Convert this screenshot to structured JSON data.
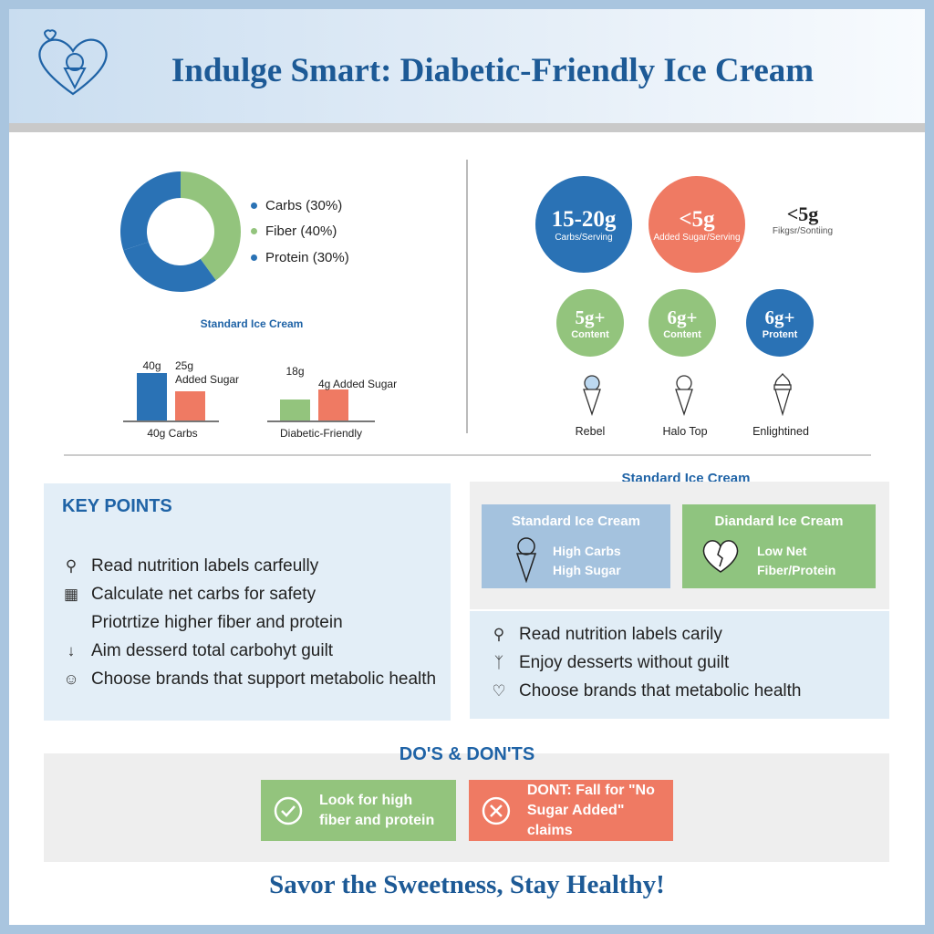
{
  "header": {
    "title": "Indulge Smart: Diabetic-Friendly Ice Cream",
    "logo_icon": "heart-ice-cream-icon"
  },
  "colors": {
    "blue": "#2a72b5",
    "green": "#93c47d",
    "red": "#ef7a63",
    "title": "#1d5a96"
  },
  "chart_data": [
    {
      "type": "pie",
      "donut": true,
      "slices": [
        {
          "label": "Carbs (30%)",
          "value": 30,
          "color": "#2a72b5"
        },
        {
          "label": "Fiber (40%)",
          "value": 40,
          "color": "#93c47d"
        },
        {
          "label": "Protein (30%)",
          "value": 30,
          "color": "#2a72b5"
        }
      ],
      "legend": "right"
    },
    {
      "type": "bar",
      "title": "Standard Ice Cream",
      "groups": [
        {
          "label": "40g Carbs",
          "bars": [
            {
              "label": "40g",
              "value": 40,
              "color": "#2a72b5"
            },
            {
              "label": "25g Added Sugar",
              "value": 25,
              "color": "#ef7a63"
            }
          ]
        },
        {
          "label": "Diabetic-Friendly",
          "bars": [
            {
              "label": "18g",
              "value": 18,
              "color": "#93c47d"
            },
            {
              "label": "4g Added Sugar",
              "value": 4,
              "color": "#ef7a63"
            }
          ]
        }
      ]
    }
  ],
  "bars_title": "Standard Ice Cream",
  "bar_labels": {
    "b1": "40g",
    "b2a": "25g",
    "b2b": "Added Sugar",
    "b3": "18g",
    "b4": "4g Added Sugar",
    "g1": "40g Carbs",
    "g2": "Diabetic-Friendly"
  },
  "stats": [
    {
      "value": "15-20g",
      "label": "Carbs/Serving"
    },
    {
      "value": "<5g",
      "label": "Added Sugar/Serving"
    },
    {
      "value": "<5g",
      "label": "Fikgsr/Sontiing"
    }
  ],
  "brands": [
    {
      "value": "5g+",
      "label": "Content",
      "name": "Rebel"
    },
    {
      "value": "6g+",
      "label": "Content",
      "name": "Halo Top"
    },
    {
      "value": "6g+",
      "label": "Protent",
      "name": "Enlightined"
    }
  ],
  "key_points": {
    "title": "KEY POINTS",
    "items": [
      {
        "icon": "search-icon",
        "text": "Read nutrition labels carfeully"
      },
      {
        "icon": "calculator-icon",
        "text": "Calculate net carbs for safety"
      },
      {
        "icon": "",
        "text": "Priotrtize higher fiber and protein"
      },
      {
        "icon": "arrow-down-icon",
        "text": "Aim desserd total carbohyt guilt"
      },
      {
        "icon": "smile-icon",
        "text": "Choose brands that support metabolic health"
      }
    ]
  },
  "compare": {
    "title": "Standard Ice Cream",
    "left": {
      "title": "Standard Ice Cream",
      "line1": "High Carbs",
      "line2": "High Sugar"
    },
    "right": {
      "title": "Diandard Ice Cream",
      "line1": "Low Net",
      "line2": "Fiber/Protein"
    },
    "items": [
      {
        "icon": "search-icon",
        "text": "Read nutrition labels carily"
      },
      {
        "icon": "muscle-icon",
        "text": "Enjoy desserts without guilt"
      },
      {
        "icon": "heart-leaf-icon",
        "text": "Choose brands that metabolic health"
      }
    ]
  },
  "dos": {
    "title": "DO'S & DON'TS",
    "do_line1": "Look for high",
    "do_line2": "fiber and protein",
    "dont_line1": "DONT: Fall for \"No",
    "dont_line2": "Sugar Added\" claims"
  },
  "footer": "Savor the Sweetness, Stay Healthy!"
}
